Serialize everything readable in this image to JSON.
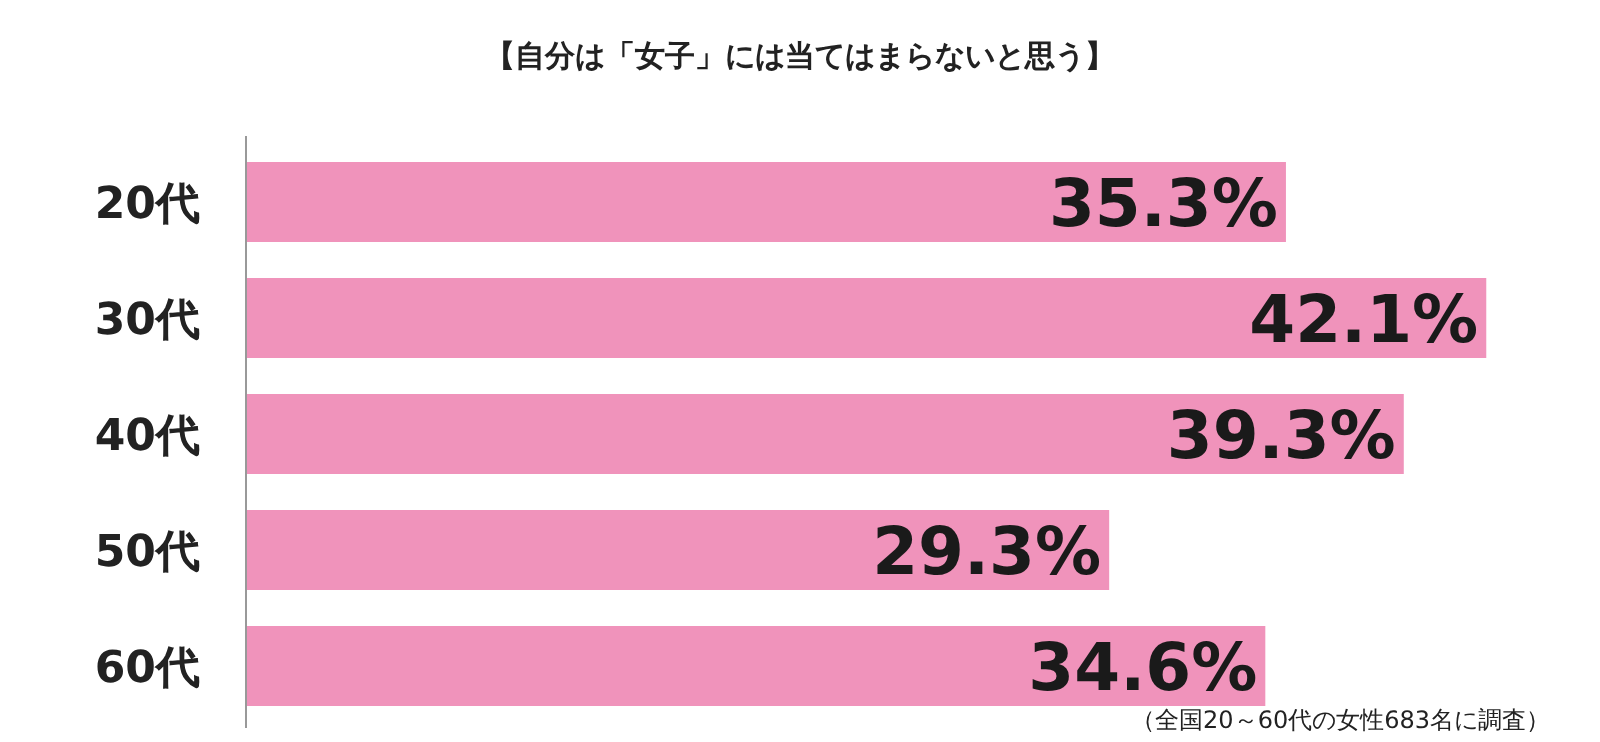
{
  "chart_data": {
    "type": "bar",
    "orientation": "horizontal",
    "title": "【自分は「女子」には当てはまらないと思う】",
    "categories": [
      "20代",
      "30代",
      "40代",
      "50代",
      "60代"
    ],
    "values": [
      35.3,
      42.1,
      39.3,
      29.3,
      34.6
    ],
    "value_labels": [
      "35.3%",
      "42.1%",
      "39.3%",
      "29.3%",
      "34.6%"
    ],
    "color": "#f093bb",
    "annotations": [
      "（全国20～60代の女性683名に調査）"
    ]
  }
}
